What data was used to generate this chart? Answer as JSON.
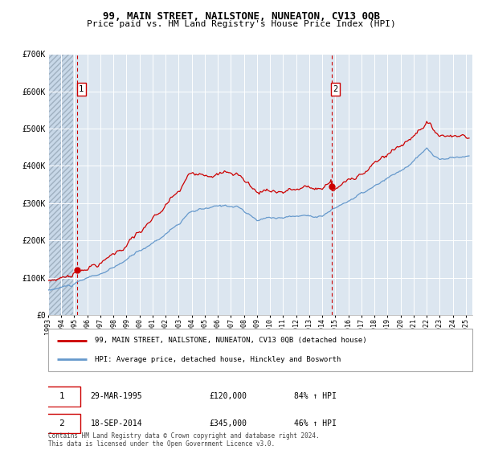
{
  "title": "99, MAIN STREET, NAILSTONE, NUNEATON, CV13 0QB",
  "subtitle": "Price paid vs. HM Land Registry's House Price Index (HPI)",
  "legend_line1": "99, MAIN STREET, NAILSTONE, NUNEATON, CV13 0QB (detached house)",
  "legend_line2": "HPI: Average price, detached house, Hinckley and Bosworth",
  "annotation1_date": "29-MAR-1995",
  "annotation1_price": "£120,000",
  "annotation1_hpi": "84% ↑ HPI",
  "annotation2_date": "18-SEP-2014",
  "annotation2_price": "£345,000",
  "annotation2_hpi": "46% ↑ HPI",
  "footer": "Contains HM Land Registry data © Crown copyright and database right 2024.\nThis data is licensed under the Open Government Licence v3.0.",
  "purchase1_year": 1995.24,
  "purchase1_value": 120000,
  "purchase2_year": 2014.72,
  "purchase2_value": 345000,
  "red_color": "#cc0000",
  "blue_color": "#6699cc",
  "bg_color": "#dce6f0",
  "hatch_color": "#c0cfe0",
  "grid_color": "#ffffff",
  "vline_color": "#cc0000",
  "ylim_max": 700000,
  "xstart": 1993,
  "xend": 2025.5
}
